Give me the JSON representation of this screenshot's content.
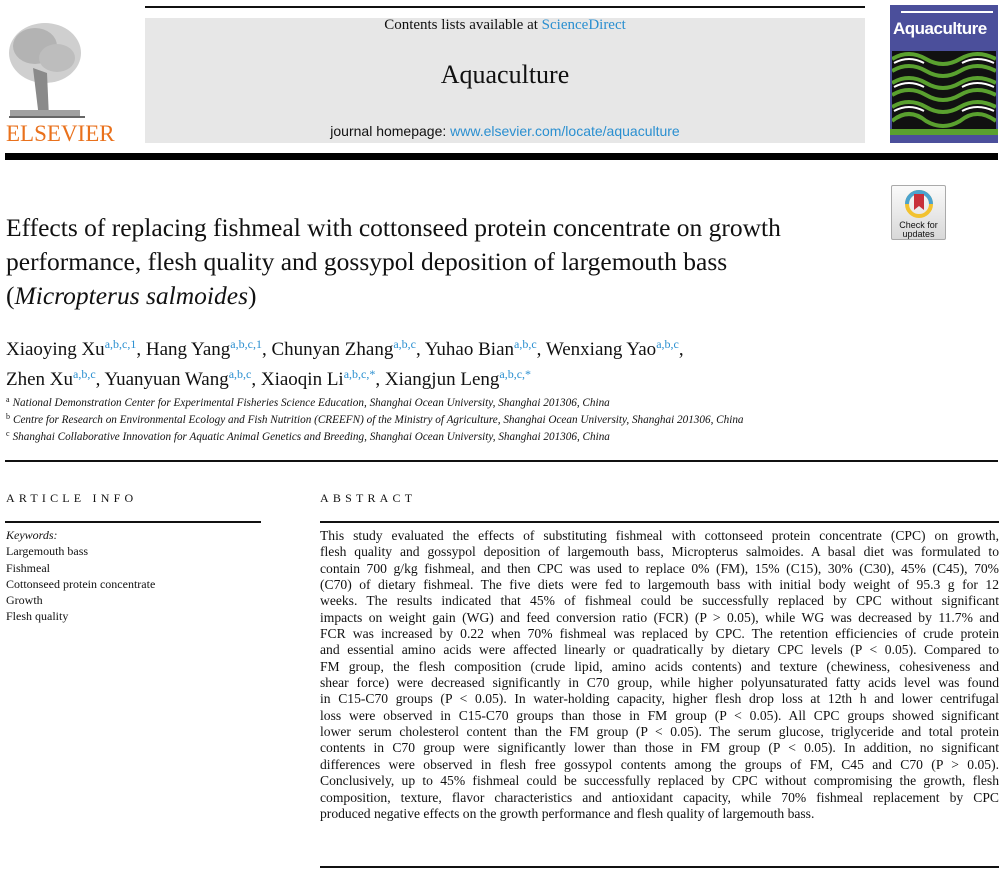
{
  "header": {
    "contents_prefix": "Contents lists available at ",
    "contents_link": "ScienceDirect",
    "journal_name": "Aquaculture",
    "homepage_prefix": "journal homepage: ",
    "homepage_link": "www.elsevier.com/locate/aquaculture",
    "publisher_logo": "ELSEVIER",
    "cover_title": "Aquaculture"
  },
  "check_updates": {
    "line1": "Check for",
    "line2": "updates"
  },
  "title_lines": [
    "Effects of replacing fishmeal with cottonseed protein concentrate on growth",
    "performance, flesh quality and gossypol deposition of largemouth bass",
    "(",
    "Micropterus salmoides",
    ")"
  ],
  "authors": [
    {
      "name": "Xiaoying Xu",
      "aff": "a,b,c,1"
    },
    {
      "name": "Hang Yang",
      "aff": "a,b,c,1"
    },
    {
      "name": "Chunyan Zhang",
      "aff": "a,b,c"
    },
    {
      "name": "Yuhao Bian",
      "aff": "a,b,c"
    },
    {
      "name": "Wenxiang Yao",
      "aff": "a,b,c"
    },
    {
      "name": "Zhen Xu",
      "aff": "a,b,c"
    },
    {
      "name": "Yuanyuan Wang",
      "aff": "a,b,c"
    },
    {
      "name": "Xiaoqin Li",
      "aff": "a,b,c,*"
    },
    {
      "name": "Xiangjun Leng",
      "aff": "a,b,c,*"
    }
  ],
  "affiliations": [
    {
      "key": "a",
      "text": "National Demonstration Center for Experimental Fisheries Science Education, Shanghai Ocean University, Shanghai 201306, China"
    },
    {
      "key": "b",
      "text": "Centre for Research on Environmental Ecology and Fish Nutrition (CREEFN) of the Ministry of Agriculture, Shanghai Ocean University, Shanghai 201306, China"
    },
    {
      "key": "c",
      "text": "Shanghai Collaborative Innovation for Aquatic Animal Genetics and Breeding, Shanghai Ocean University, Shanghai 201306, China"
    }
  ],
  "article_info": {
    "heading": "ARTICLE INFO",
    "keywords_label": "Keywords:",
    "keywords": [
      "Largemouth bass",
      "Fishmeal",
      "Cottonseed protein concentrate",
      "Growth",
      "Flesh quality"
    ]
  },
  "abstract": {
    "heading": "ABSTRACT",
    "lines": [
      "This study evaluated the effects of substituting fishmeal with cottonseed protein concentrate (CPC) on growth,",
      "flesh quality and gossypol deposition of largemouth bass, Micropterus salmoides. A basal diet was formulated to",
      "contain 700 g/kg fishmeal, and then CPC was used to replace 0% (FM), 15% (C15), 30% (C30), 45% (C45), 70%",
      "(C70) of dietary fishmeal. The five diets were fed to largemouth bass with initial body weight of 95.3 g for 12",
      "weeks. The results indicated that 45% of fishmeal could be successfully replaced by CPC without significant",
      "impacts on weight gain (WG) and feed conversion ratio (FCR) (P > 0.05), while WG was decreased by 11.7% and",
      "FCR was increased by 0.22 when 70% fishmeal was replaced by CPC. The retention efficiencies of crude protein",
      "and essential amino acids were affected linearly or quadratically by dietary CPC levels (P < 0.05). Compared to",
      "FM group, the flesh composition (crude lipid, amino acids contents) and texture (chewiness, cohesiveness and",
      "shear force) were decreased significantly in C70 group, while higher polyunsaturated fatty acids level was found",
      "in C15-C70 groups (P < 0.05). In water-holding capacity, higher flesh drop loss at 12th h and lower centrifugal",
      "loss were observed in C15-C70 groups than those in FM group (P < 0.05). All CPC groups showed significant",
      "lower serum cholesterol content than the FM group (P < 0.05). The serum glucose, triglyceride and total protein",
      "contents in C70 group were significantly lower than those in FM group (P < 0.05). In addition, no significant",
      "differences were observed in flesh free gossypol contents among the groups of FM, C45 and C70 (P > 0.05).",
      "Conclusively, up to 45% fishmeal could be successfully replaced by CPC without compromising the growth, flesh",
      "composition, texture, flavor characteristics and antioxidant capacity, while 70% fishmeal replacement by CPC",
      "produced negative effects on the growth performance and flesh quality of largemouth bass."
    ]
  },
  "colors": {
    "link": "#2a8fd0",
    "elsevier_orange": "#e9711c",
    "cover_blue": "#4b4f9b",
    "cover_green": "#5aa12f"
  }
}
